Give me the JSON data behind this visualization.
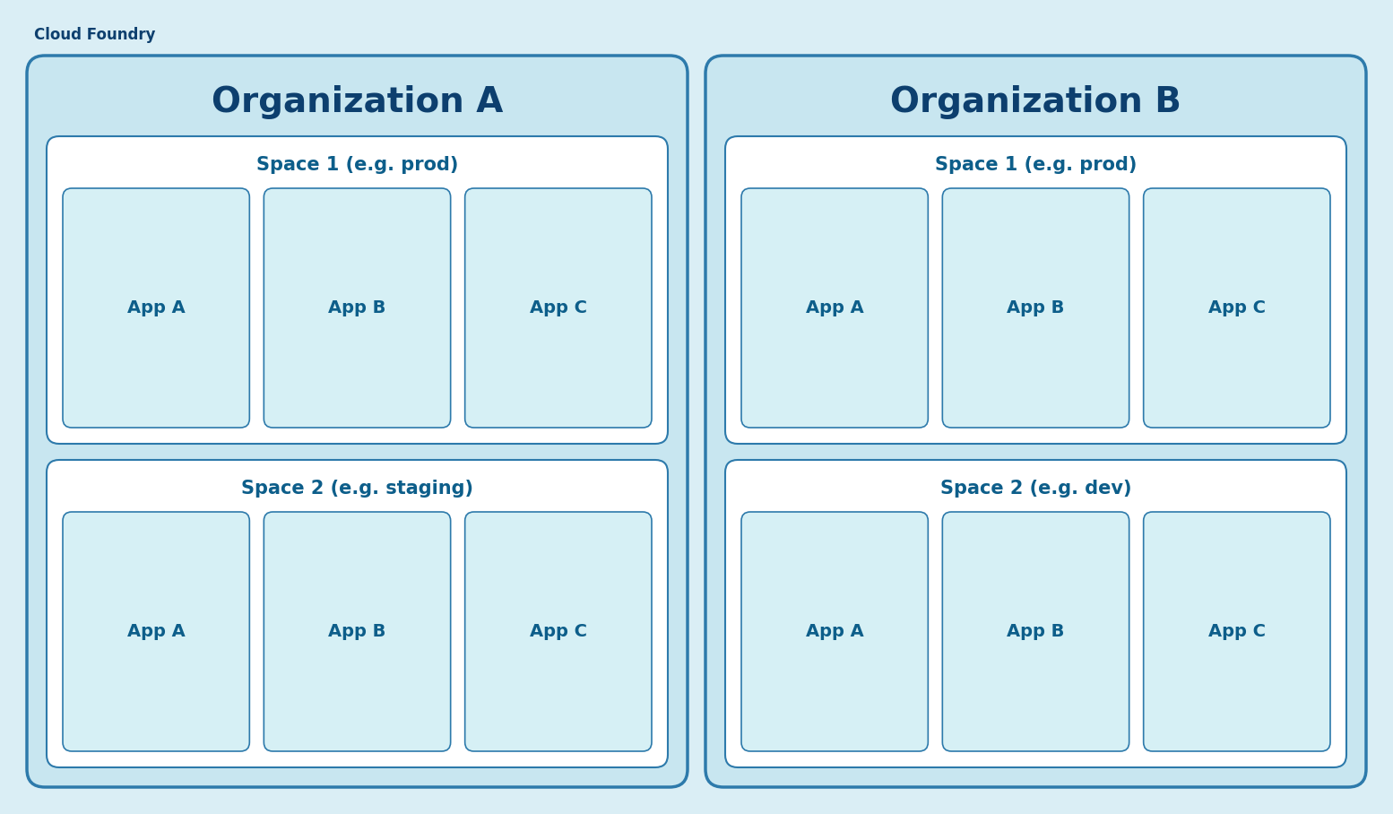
{
  "figure_bg": "#daeef5",
  "org_bg": "#c8e6f0",
  "space_bg": "#ffffff",
  "app_bg": "#d6f0f5",
  "org_border": "#2d7aab",
  "space_border": "#2d7aab",
  "app_border": "#2d7aab",
  "dark_blue": "#0d3f6e",
  "medium_blue": "#0d5e8a",
  "title_main": "Cloud Foundry",
  "org_a_title": "Organization A",
  "org_b_title": "Organization B",
  "org_a_spaces": [
    {
      "label": "Space 1 (e.g. prod)",
      "apps": [
        "App A",
        "App B",
        "App C"
      ]
    },
    {
      "label": "Space 2 (e.g. staging)",
      "apps": [
        "App A",
        "App B",
        "App C"
      ]
    }
  ],
  "org_b_spaces": [
    {
      "label": "Space 1 (e.g. prod)",
      "apps": [
        "App A",
        "App B",
        "App C"
      ]
    },
    {
      "label": "Space 2 (e.g. dev)",
      "apps": [
        "App A",
        "App B",
        "App C"
      ]
    }
  ]
}
